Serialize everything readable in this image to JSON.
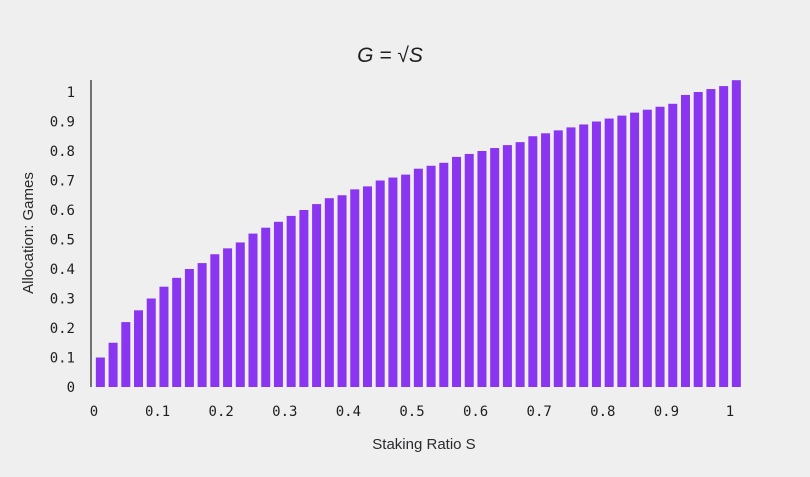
{
  "chart_data": {
    "type": "bar",
    "title": "G = √S",
    "xlabel": "Staking Ratio S",
    "ylabel": "Allocation: Games",
    "xlim": [
      0,
      1
    ],
    "ylim": [
      0,
      1
    ],
    "x_ticks": [
      "0",
      "0.1",
      "0.2",
      "0.3",
      "0.4",
      "0.5",
      "0.6",
      "0.7",
      "0.8",
      "0.9",
      "1"
    ],
    "y_ticks": [
      "0",
      "0.1",
      "0.2",
      "0.3",
      "0.4",
      "0.5",
      "0.6",
      "0.7",
      "0.8",
      "0.9",
      "1"
    ],
    "x": [
      0.01,
      0.03,
      0.05,
      0.07,
      0.09,
      0.11,
      0.13,
      0.15,
      0.17,
      0.19,
      0.21,
      0.23,
      0.25,
      0.27,
      0.29,
      0.31,
      0.33,
      0.35,
      0.37,
      0.39,
      0.41,
      0.43,
      0.45,
      0.47,
      0.49,
      0.51,
      0.53,
      0.55,
      0.57,
      0.59,
      0.61,
      0.63,
      0.65,
      0.67,
      0.69,
      0.71,
      0.73,
      0.75,
      0.77,
      0.79,
      0.81,
      0.83,
      0.85,
      0.87,
      0.89,
      0.91,
      0.93,
      0.95,
      0.97,
      0.99,
      1.01
    ],
    "values": [
      0.1,
      0.15,
      0.22,
      0.26,
      0.3,
      0.34,
      0.37,
      0.4,
      0.42,
      0.45,
      0.47,
      0.49,
      0.52,
      0.54,
      0.56,
      0.58,
      0.6,
      0.62,
      0.64,
      0.65,
      0.67,
      0.68,
      0.7,
      0.71,
      0.72,
      0.74,
      0.75,
      0.76,
      0.78,
      0.79,
      0.8,
      0.81,
      0.82,
      0.83,
      0.85,
      0.86,
      0.87,
      0.88,
      0.89,
      0.9,
      0.91,
      0.92,
      0.93,
      0.94,
      0.95,
      0.96,
      0.99,
      1.0,
      1.01,
      1.02,
      1.04
    ],
    "bar_color": "#8a35f0",
    "grid": false,
    "legend": "none"
  }
}
